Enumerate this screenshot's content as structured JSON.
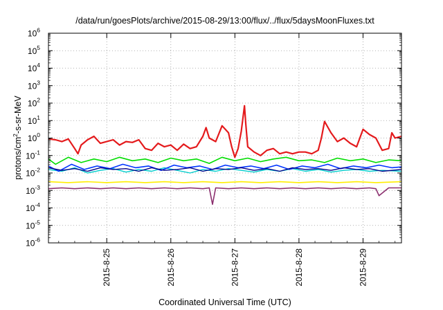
{
  "chart_data": {
    "type": "line",
    "title": "/data/run/goesPlots/archive/2015-08-29/13:00/flux/../flux/5daysMoonFluxes.txt",
    "xlabel": "Coordinated Universal Time (UTC)",
    "ylabel": {
      "main": "protons/cm",
      "sup": "2",
      "rest": "-s-sr-MeV"
    },
    "yscale": "log",
    "ylim_exp": [
      -6,
      6
    ],
    "y_ticks": [
      {
        "base": "10",
        "exp": "-6",
        "value": -6
      },
      {
        "base": "10",
        "exp": "-5",
        "value": -5
      },
      {
        "base": "10",
        "exp": "-4",
        "value": -4
      },
      {
        "base": "10",
        "exp": "-3",
        "value": -3
      },
      {
        "base": "10",
        "exp": "-2",
        "value": -2
      },
      {
        "base": "10",
        "exp": "-1",
        "value": -1
      },
      {
        "base": "10",
        "exp": "0",
        "value": 0
      },
      {
        "base": "10",
        "exp": "1",
        "value": 1
      },
      {
        "base": "10",
        "exp": "2",
        "value": 2
      },
      {
        "base": "10",
        "exp": "3",
        "value": 3
      },
      {
        "base": "10",
        "exp": "4",
        "value": 4
      },
      {
        "base": "10",
        "exp": "5",
        "value": 5
      },
      {
        "base": "10",
        "exp": "6",
        "value": 6
      }
    ],
    "xlim_days": [
      24.09,
      29.6
    ],
    "x_ticks": [
      {
        "label": "2015-8-25",
        "day": 25
      },
      {
        "label": "2015-8-26",
        "day": 26
      },
      {
        "label": "2015-8-27",
        "day": 27
      },
      {
        "label": "2015-8-28",
        "day": 28
      },
      {
        "label": "2015-8-29",
        "day": 29
      }
    ],
    "grid": true,
    "series": [
      {
        "color": "#e41a1c",
        "width": 2.2,
        "x": [
          24.09,
          24.2,
          24.3,
          24.4,
          24.5,
          24.55,
          24.6,
          24.7,
          24.8,
          24.9,
          25.0,
          25.1,
          25.2,
          25.3,
          25.4,
          25.5,
          25.6,
          25.7,
          25.8,
          25.9,
          26.0,
          26.1,
          26.2,
          26.3,
          26.4,
          26.5,
          26.55,
          26.6,
          26.7,
          26.8,
          26.9,
          26.95,
          27.0,
          27.05,
          27.1,
          27.15,
          27.17,
          27.2,
          27.3,
          27.4,
          27.5,
          27.6,
          27.7,
          27.8,
          27.9,
          28.0,
          28.1,
          28.2,
          28.3,
          28.35,
          28.4,
          28.5,
          28.6,
          28.7,
          28.8,
          28.9,
          29.0,
          29.1,
          29.2,
          29.3,
          29.4,
          29.45,
          29.5,
          29.6
        ],
        "y": [
          -0.05,
          -0.1,
          -0.2,
          -0.05,
          -0.6,
          -0.9,
          -0.4,
          -0.1,
          0.1,
          -0.3,
          -0.2,
          -0.1,
          -0.4,
          -0.2,
          -0.25,
          -0.1,
          -0.6,
          -0.7,
          -0.3,
          -0.5,
          -0.4,
          -0.7,
          -0.35,
          -0.6,
          -0.5,
          0.1,
          0.6,
          0.0,
          -0.2,
          0.7,
          0.3,
          -0.5,
          -1.1,
          -0.6,
          0.4,
          1.85,
          0.8,
          -0.5,
          -0.8,
          -1.0,
          -0.7,
          -0.6,
          -0.9,
          -0.8,
          -0.9,
          -0.8,
          -0.8,
          -0.9,
          -0.7,
          0.0,
          0.95,
          0.3,
          -0.2,
          0.0,
          -0.3,
          -0.5,
          0.5,
          0.2,
          0.0,
          -0.7,
          -0.6,
          0.3,
          0.0,
          0.1
        ]
      },
      {
        "color": "#00dd00",
        "width": 1.6,
        "x": [
          24.09,
          24.2,
          24.4,
          24.6,
          24.8,
          25.0,
          25.2,
          25.4,
          25.6,
          25.8,
          26.0,
          26.2,
          26.4,
          26.6,
          26.8,
          27.0,
          27.2,
          27.4,
          27.6,
          27.8,
          28.0,
          28.2,
          28.4,
          28.6,
          28.8,
          29.0,
          29.2,
          29.4,
          29.6
        ],
        "y": [
          -1.2,
          -1.5,
          -1.1,
          -1.4,
          -1.2,
          -1.35,
          -1.1,
          -1.3,
          -1.2,
          -1.4,
          -1.15,
          -1.3,
          -1.2,
          -1.45,
          -1.1,
          -1.3,
          -1.15,
          -1.35,
          -1.2,
          -1.1,
          -1.3,
          -1.25,
          -1.4,
          -1.15,
          -1.3,
          -1.2,
          -1.4,
          -1.25,
          -1.3
        ]
      },
      {
        "color": "#00cccc",
        "width": 1.4,
        "x": [
          24.09,
          24.3,
          24.5,
          24.7,
          24.9,
          25.1,
          25.3,
          25.5,
          25.7,
          25.9,
          26.1,
          26.3,
          26.5,
          26.7,
          26.9,
          27.1,
          27.3,
          27.5,
          27.7,
          27.9,
          28.1,
          28.3,
          28.5,
          28.7,
          28.9,
          29.1,
          29.3,
          29.6
        ],
        "y": [
          -1.8,
          -1.9,
          -1.7,
          -2.0,
          -1.85,
          -1.75,
          -1.95,
          -1.8,
          -1.9,
          -1.7,
          -1.85,
          -2.0,
          -1.8,
          -1.9,
          -1.75,
          -1.85,
          -1.95,
          -1.8,
          -1.9,
          -1.75,
          -1.9,
          -1.8,
          -1.95,
          -1.85,
          -1.8,
          -1.9,
          -1.85,
          -1.9
        ]
      },
      {
        "color": "#0033ff",
        "width": 1.6,
        "x": [
          24.09,
          24.25,
          24.45,
          24.65,
          24.85,
          25.05,
          25.25,
          25.45,
          25.65,
          25.85,
          26.05,
          26.25,
          26.45,
          26.65,
          26.85,
          27.05,
          27.25,
          27.45,
          27.65,
          27.85,
          28.05,
          28.25,
          28.45,
          28.65,
          28.85,
          29.05,
          29.25,
          29.45,
          29.6
        ],
        "y": [
          -1.6,
          -1.9,
          -1.5,
          -1.8,
          -1.6,
          -1.75,
          -1.5,
          -1.7,
          -1.6,
          -1.85,
          -1.55,
          -1.7,
          -1.6,
          -1.8,
          -1.55,
          -1.7,
          -1.6,
          -1.75,
          -1.55,
          -1.8,
          -1.6,
          -1.7,
          -1.5,
          -1.75,
          -1.6,
          -1.7,
          -1.55,
          -1.7,
          -1.65
        ]
      },
      {
        "color": "#000088",
        "width": 1.4,
        "x": [
          24.09,
          24.3,
          24.5,
          24.7,
          24.9,
          25.1,
          25.3,
          25.5,
          25.7,
          25.9,
          26.1,
          26.3,
          26.5,
          26.7,
          26.9,
          27.1,
          27.3,
          27.5,
          27.7,
          27.9,
          28.1,
          28.3,
          28.5,
          28.7,
          28.9,
          29.1,
          29.3,
          29.6
        ],
        "y": [
          -1.7,
          -1.85,
          -1.75,
          -1.9,
          -1.7,
          -1.8,
          -1.75,
          -1.9,
          -1.7,
          -1.85,
          -1.8,
          -1.7,
          -1.9,
          -1.75,
          -1.8,
          -1.7,
          -1.85,
          -1.75,
          -1.9,
          -1.7,
          -1.8,
          -1.75,
          -1.85,
          -1.7,
          -1.8,
          -1.75,
          -1.9,
          -1.8
        ]
      },
      {
        "color": "#ffee00",
        "width": 1.6,
        "x": [
          24.09,
          24.4,
          24.7,
          25.0,
          25.3,
          25.6,
          25.9,
          26.2,
          26.5,
          26.8,
          27.1,
          27.4,
          27.7,
          28.0,
          28.3,
          28.6,
          28.9,
          29.2,
          29.6
        ],
        "y": [
          -2.5,
          -2.55,
          -2.5,
          -2.55,
          -2.5,
          -2.55,
          -2.5,
          -2.55,
          -2.5,
          -2.55,
          -2.5,
          -2.55,
          -2.5,
          -2.55,
          -2.5,
          -2.55,
          -2.5,
          -2.55,
          -2.5
        ]
      },
      {
        "color": "#8b2e6e",
        "width": 1.6,
        "x": [
          24.09,
          24.3,
          24.5,
          24.7,
          24.9,
          25.1,
          25.3,
          25.5,
          25.7,
          25.9,
          26.1,
          26.3,
          26.5,
          26.6,
          26.65,
          26.7,
          26.9,
          27.1,
          27.3,
          27.5,
          27.7,
          27.9,
          28.1,
          28.3,
          28.5,
          28.7,
          28.9,
          29.1,
          29.2,
          29.25,
          29.4,
          29.6
        ],
        "y": [
          -2.9,
          -2.85,
          -2.9,
          -2.85,
          -2.9,
          -2.85,
          -2.9,
          -2.85,
          -2.9,
          -2.85,
          -2.9,
          -2.85,
          -2.9,
          -2.85,
          -3.8,
          -2.85,
          -2.9,
          -2.85,
          -2.9,
          -2.85,
          -2.9,
          -2.85,
          -2.9,
          -2.85,
          -2.9,
          -2.85,
          -2.9,
          -2.85,
          -2.9,
          -3.3,
          -2.85,
          -2.85
        ]
      }
    ]
  }
}
